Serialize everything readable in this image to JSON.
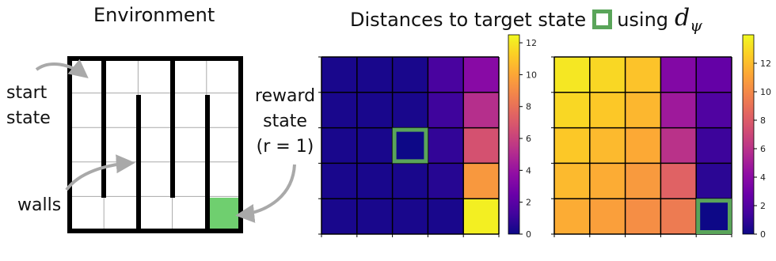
{
  "left": {
    "title": "Environment",
    "labels": {
      "start": [
        "start",
        "state"
      ],
      "reward": [
        "reward",
        "state",
        "(r = 1)"
      ],
      "walls": "walls"
    },
    "reward_color": "#6fcf6f",
    "grid_rows": 5,
    "grid_cols": 5
  },
  "right": {
    "title_prefix": "Distances to target state",
    "title_suffix": "using",
    "math_symbol": "d",
    "math_subscript": "ψ",
    "target_box_color": "#5aa55a"
  },
  "chart_data": [
    {
      "type": "heatmap",
      "rows": 5,
      "cols": 5,
      "values": [
        [
          0.3,
          0.3,
          0.3,
          1.5,
          3.5
        ],
        [
          0.3,
          0.3,
          0.3,
          1.2,
          5.2
        ],
        [
          0.3,
          0.3,
          0.0,
          0.9,
          6.7
        ],
        [
          0.3,
          0.3,
          0.3,
          0.6,
          9.5
        ],
        [
          0.3,
          0.3,
          0.3,
          0.3,
          12.2
        ]
      ],
      "target_cell": [
        2,
        2
      ],
      "colorbar": {
        "min": 0,
        "max": 12.5,
        "ticks": [
          0,
          2,
          4,
          6,
          8,
          10,
          12
        ]
      },
      "colormap": "plasma"
    },
    {
      "type": "heatmap",
      "rows": 5,
      "cols": 5,
      "values": [
        [
          13.4,
          12.9,
          12.2,
          3.7,
          2.6
        ],
        [
          12.9,
          12.4,
          11.8,
          4.8,
          1.9
        ],
        [
          12.4,
          11.9,
          11.3,
          6.0,
          1.3
        ],
        [
          11.9,
          11.4,
          10.7,
          8.3,
          0.8
        ],
        [
          11.4,
          10.9,
          10.2,
          9.4,
          0.0
        ]
      ],
      "target_cell": [
        4,
        4
      ],
      "colorbar": {
        "min": 0,
        "max": 14,
        "ticks": [
          0,
          2,
          4,
          6,
          8,
          10,
          12
        ]
      },
      "colormap": "plasma"
    }
  ]
}
